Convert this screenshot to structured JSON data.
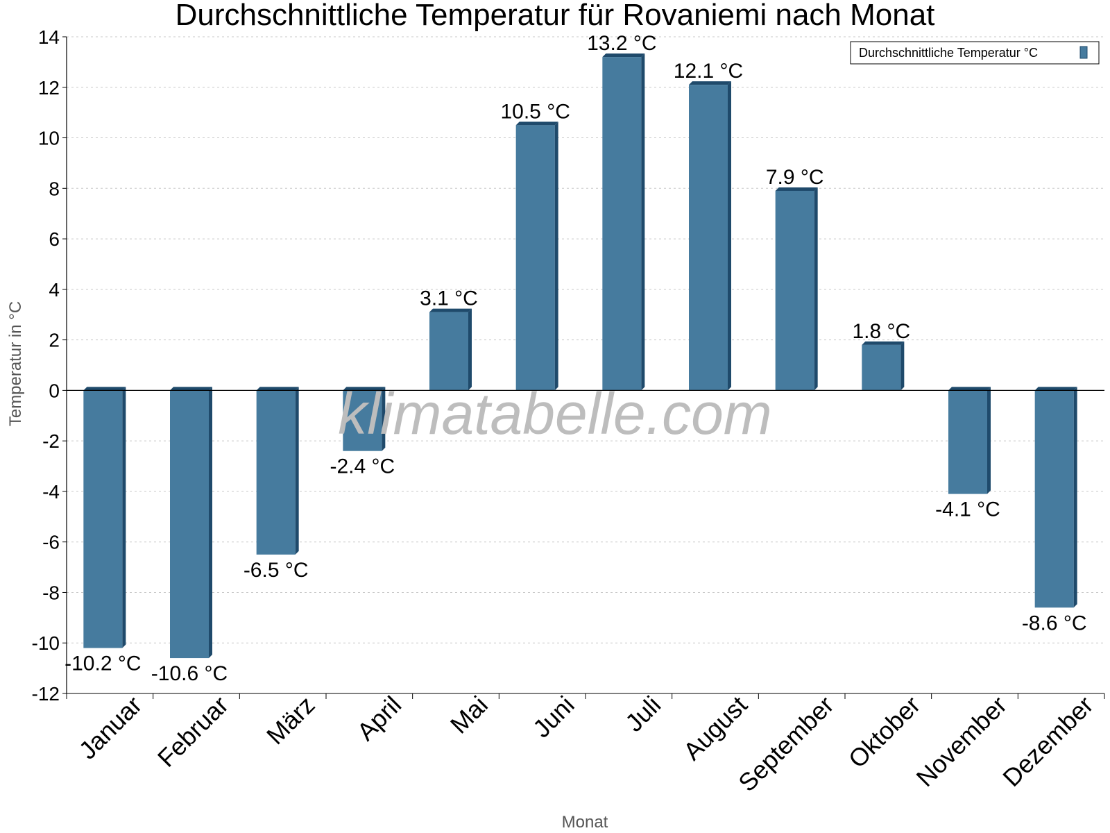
{
  "chart_data": {
    "type": "bar",
    "title": "Durchschnittliche Temperatur für Rovaniemi nach Monat",
    "xlabel": "Monat",
    "ylabel": "Temperatur in °C",
    "categories": [
      "Januar",
      "Februar",
      "März",
      "April",
      "Mai",
      "Juni",
      "Juli",
      "August",
      "September",
      "Oktober",
      "November",
      "Dezember"
    ],
    "series": [
      {
        "name": "Durchschnittliche Temperatur °C",
        "values": [
          -10.2,
          -10.6,
          -6.5,
          -2.4,
          3.1,
          10.5,
          13.2,
          12.1,
          7.9,
          1.8,
          -4.1,
          -8.6
        ],
        "labels": [
          "-10.2 °C",
          "-10.6 °C",
          "-6.5 °C",
          "-2.4 °C",
          "3.1 °C",
          "10.5 °C",
          "13.2 °C",
          "12.1 °C",
          "7.9 °C",
          "1.8 °C",
          "-4.1 °C",
          "-8.6 °C"
        ]
      }
    ],
    "ylim": [
      -12,
      14
    ],
    "yticks": [
      -12,
      -10,
      -8,
      -6,
      -4,
      -2,
      0,
      2,
      4,
      6,
      8,
      10,
      12,
      14
    ],
    "grid": true,
    "legend_position": "top-right",
    "colors": {
      "bar": "#467b9e",
      "bar_side": "#1f4a6b",
      "grid": "#c8c8c8"
    }
  },
  "watermark": "klimatabelle.com"
}
